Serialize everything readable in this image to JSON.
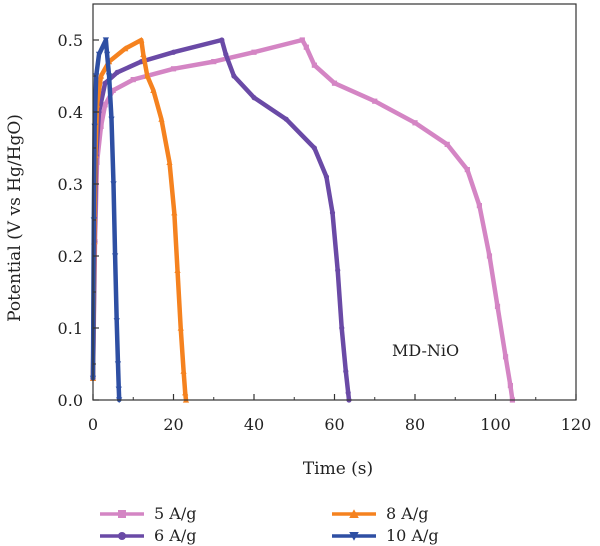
{
  "chart_data": {
    "type": "line",
    "xlabel": "Time (s)",
    "ylabel": "Potential (V vs Hg/HgO)",
    "xlim": [
      0,
      120
    ],
    "ylim": [
      0,
      0.55
    ],
    "xticks": [
      0,
      20,
      40,
      60,
      80,
      100,
      120
    ],
    "yticks": [
      0.0,
      0.1,
      0.2,
      0.3,
      0.4,
      0.5
    ],
    "xtick_labels": [
      "0",
      "20",
      "40",
      "60",
      "80",
      "100",
      "120"
    ],
    "ytick_labels": [
      "0.0",
      "0.1",
      "0.2",
      "0.3",
      "0.4",
      "0.5"
    ],
    "annotation": "MD-NiO",
    "legend_position": "bottom",
    "grid": false,
    "series": [
      {
        "name": "5 A/g",
        "color": "#d485c4",
        "marker": "square",
        "points": [
          [
            0,
            0.03
          ],
          [
            0.5,
            0.22
          ],
          [
            1,
            0.33
          ],
          [
            2,
            0.38
          ],
          [
            3,
            0.41
          ],
          [
            5,
            0.43
          ],
          [
            10,
            0.445
          ],
          [
            20,
            0.46
          ],
          [
            30,
            0.47
          ],
          [
            40,
            0.483
          ],
          [
            52,
            0.5
          ],
          [
            53,
            0.49
          ],
          [
            55,
            0.465
          ],
          [
            60,
            0.44
          ],
          [
            70,
            0.415
          ],
          [
            80,
            0.385
          ],
          [
            88,
            0.355
          ],
          [
            93,
            0.32
          ],
          [
            96,
            0.27
          ],
          [
            98.5,
            0.2
          ],
          [
            100.5,
            0.13
          ],
          [
            102.5,
            0.06
          ],
          [
            103.7,
            0.02
          ],
          [
            104.2,
            0.0
          ]
        ]
      },
      {
        "name": "6 A/g",
        "color": "#6a4aa6",
        "marker": "circle",
        "points": [
          [
            0,
            0.03
          ],
          [
            0.4,
            0.22
          ],
          [
            0.8,
            0.34
          ],
          [
            1.5,
            0.4
          ],
          [
            3,
            0.44
          ],
          [
            6,
            0.455
          ],
          [
            12,
            0.47
          ],
          [
            20,
            0.483
          ],
          [
            32,
            0.5
          ],
          [
            33,
            0.48
          ],
          [
            35,
            0.45
          ],
          [
            40,
            0.42
          ],
          [
            48,
            0.39
          ],
          [
            55,
            0.35
          ],
          [
            58,
            0.31
          ],
          [
            59.5,
            0.26
          ],
          [
            60.8,
            0.18
          ],
          [
            61.8,
            0.1
          ],
          [
            62.8,
            0.04
          ],
          [
            63.4,
            0.01
          ],
          [
            63.6,
            0.0
          ]
        ]
      },
      {
        "name": "8 A/g",
        "color": "#f5821f",
        "marker": "triangle-up",
        "points": [
          [
            0,
            0.03
          ],
          [
            0.3,
            0.22
          ],
          [
            0.6,
            0.34
          ],
          [
            1,
            0.41
          ],
          [
            2,
            0.45
          ],
          [
            4,
            0.47
          ],
          [
            8,
            0.488
          ],
          [
            12,
            0.5
          ],
          [
            12.5,
            0.48
          ],
          [
            13.5,
            0.45
          ],
          [
            15,
            0.43
          ],
          [
            17,
            0.39
          ],
          [
            19,
            0.33
          ],
          [
            20.2,
            0.26
          ],
          [
            21,
            0.18
          ],
          [
            21.8,
            0.1
          ],
          [
            22.5,
            0.04
          ],
          [
            22.9,
            0.01
          ],
          [
            23.1,
            0.0
          ]
        ]
      },
      {
        "name": "10 A/g",
        "color": "#2e4fa3",
        "marker": "triangle-down",
        "points": [
          [
            0,
            0.03
          ],
          [
            0.2,
            0.25
          ],
          [
            0.4,
            0.38
          ],
          [
            0.8,
            0.45
          ],
          [
            1.5,
            0.48
          ],
          [
            3.2,
            0.5
          ],
          [
            3.5,
            0.48
          ],
          [
            4,
            0.45
          ],
          [
            4.6,
            0.39
          ],
          [
            5.1,
            0.3
          ],
          [
            5.5,
            0.2
          ],
          [
            5.9,
            0.11
          ],
          [
            6.2,
            0.05
          ],
          [
            6.4,
            0.015
          ],
          [
            6.5,
            0.0
          ]
        ]
      }
    ]
  }
}
